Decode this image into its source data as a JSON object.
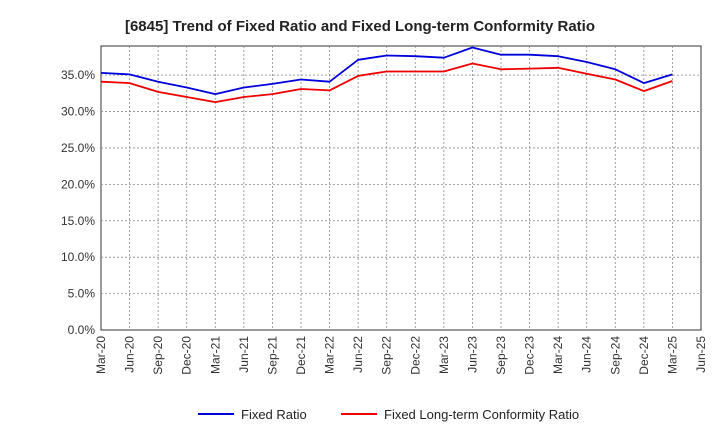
{
  "chart_data": {
    "type": "line",
    "title": "[6845]  Trend of Fixed Ratio and Fixed Long-term Conformity Ratio",
    "xlabel": "",
    "ylabel": "",
    "x": [
      "Mar-20",
      "Jun-20",
      "Sep-20",
      "Dec-20",
      "Mar-21",
      "Jun-21",
      "Sep-21",
      "Dec-21",
      "Mar-22",
      "Jun-22",
      "Sep-22",
      "Dec-22",
      "Mar-23",
      "Jun-23",
      "Sep-23",
      "Dec-23",
      "Mar-24",
      "Jun-24",
      "Sep-24",
      "Dec-24",
      "Mar-25",
      "Jun-25"
    ],
    "ylim": [
      0,
      0.39
    ],
    "yticks": [
      0,
      0.05,
      0.1,
      0.15,
      0.2,
      0.25,
      0.3,
      0.35
    ],
    "ytick_labels": [
      "0.0%",
      "5.0%",
      "10.0%",
      "15.0%",
      "20.0%",
      "25.0%",
      "30.0%",
      "35.0%"
    ],
    "grid": true,
    "legend_position": "bottom",
    "series": [
      {
        "name": "Fixed Ratio",
        "color": "#0000dd",
        "values": [
          0.353,
          0.351,
          0.341,
          0.333,
          0.324,
          0.333,
          0.338,
          0.344,
          0.341,
          0.371,
          0.377,
          0.376,
          0.374,
          0.388,
          0.378,
          0.378,
          0.376,
          0.368,
          0.358,
          0.339,
          0.351,
          null
        ]
      },
      {
        "name": "Fixed Long-term Conformity Ratio",
        "color": "#ee0000",
        "values": [
          0.341,
          0.339,
          0.327,
          0.32,
          0.313,
          0.32,
          0.324,
          0.331,
          0.329,
          0.349,
          0.355,
          0.355,
          0.355,
          0.366,
          0.358,
          0.359,
          0.36,
          0.352,
          0.344,
          0.328,
          0.342,
          null
        ]
      }
    ]
  }
}
